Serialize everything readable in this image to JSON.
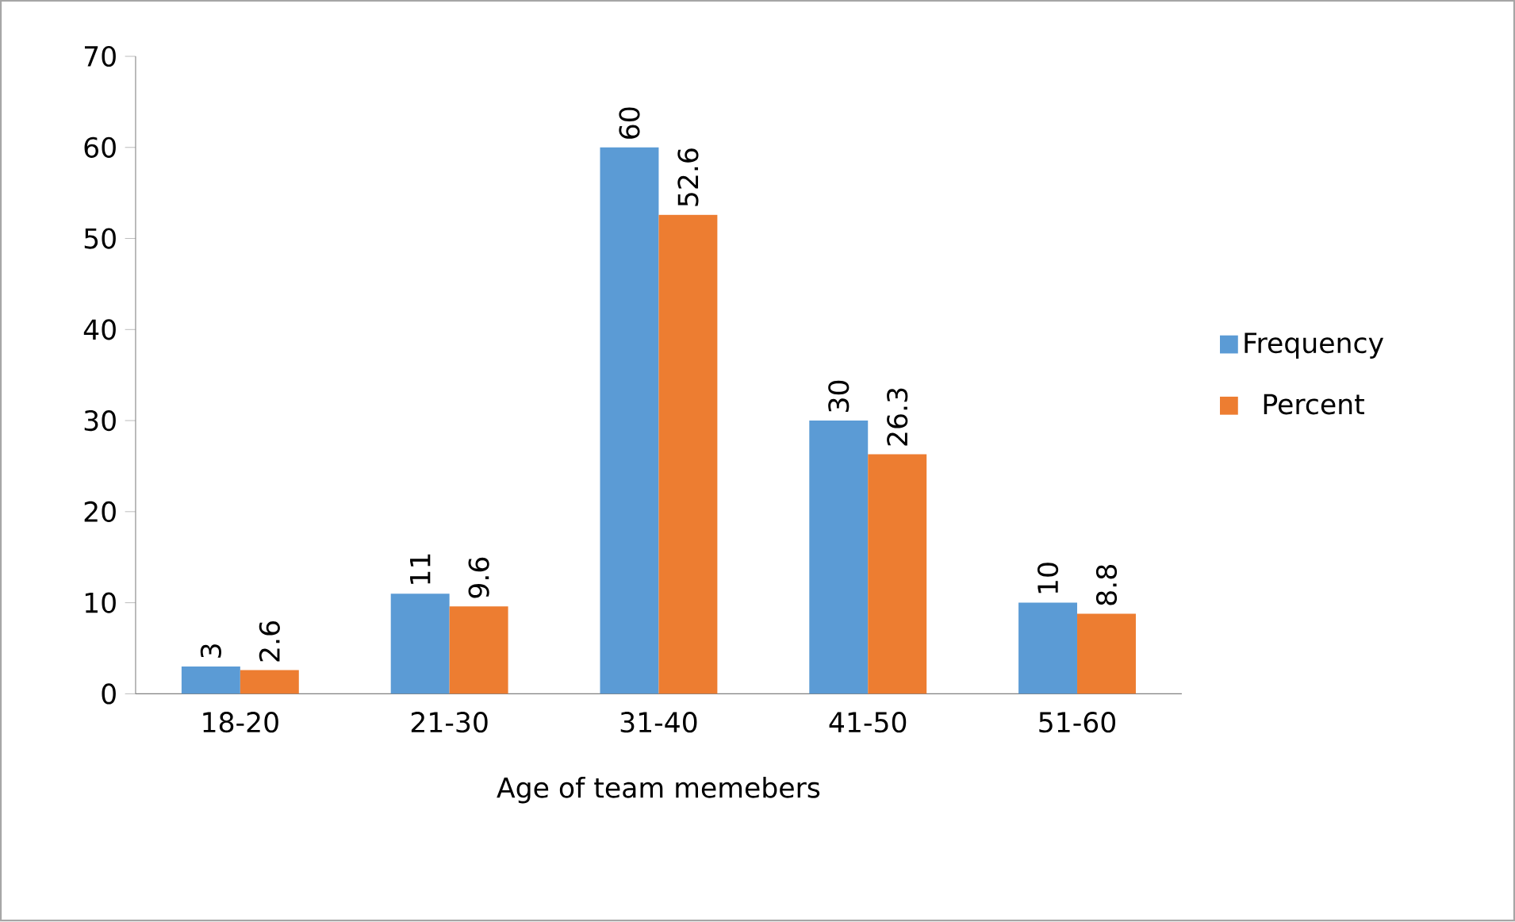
{
  "chart_data": {
    "type": "bar",
    "xlabel": "Age of team memebers",
    "categories": [
      "18-20",
      "21-30",
      "31-40",
      "41-50",
      "51-60"
    ],
    "series": [
      {
        "name": "Frequency",
        "color": "#5b9bd5",
        "values": [
          3,
          11,
          60,
          30,
          10
        ]
      },
      {
        "name": "Percent",
        "color": "#ed7d31",
        "values": [
          2.6,
          9.6,
          52.6,
          26.3,
          8.8
        ]
      }
    ],
    "ylim": [
      0,
      70
    ],
    "yticks": [
      0,
      10,
      20,
      30,
      40,
      50,
      60,
      70
    ],
    "grid": false,
    "legend": "right",
    "data_labels": true
  }
}
